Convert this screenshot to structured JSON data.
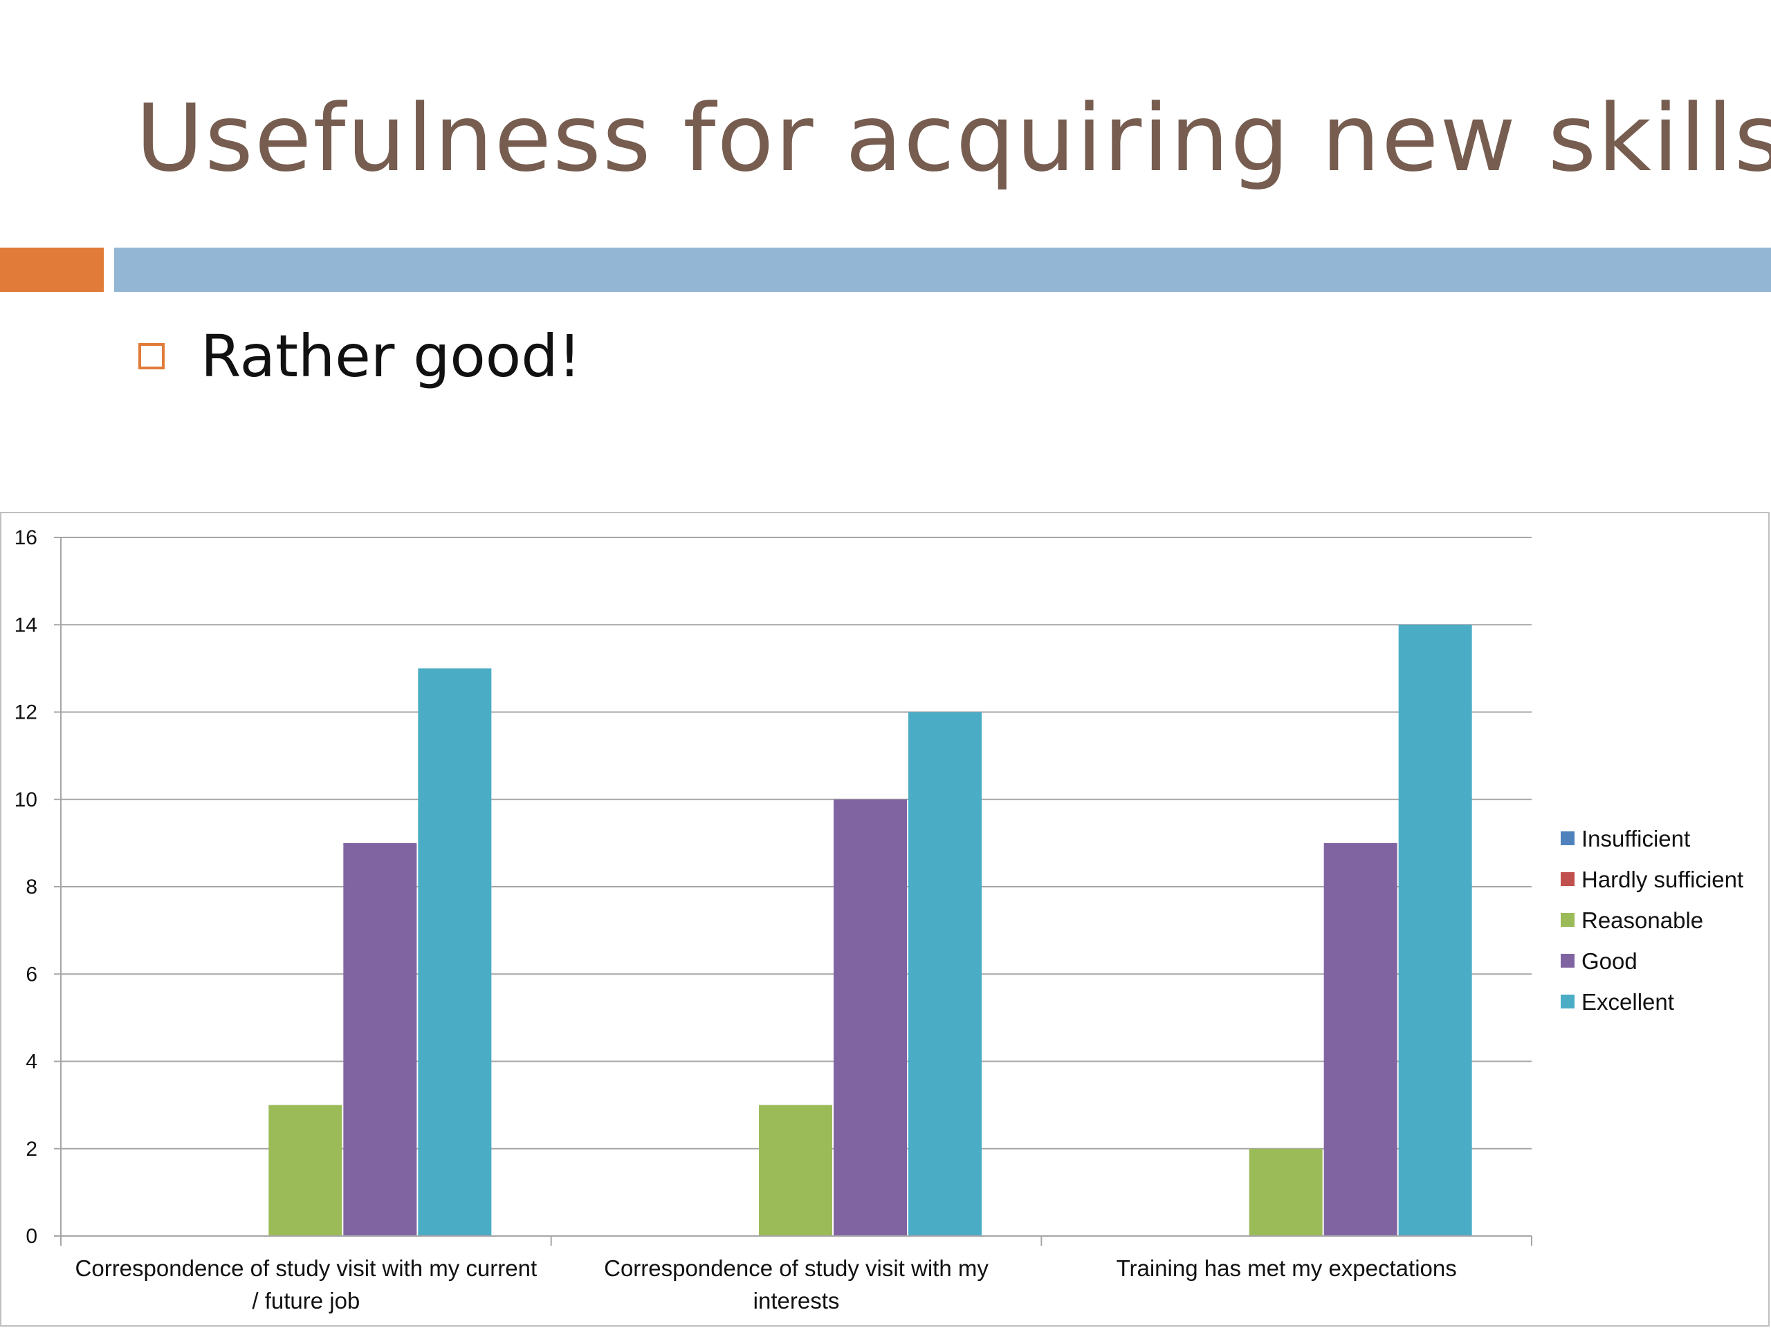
{
  "slide": {
    "title": "Usefulness for acquiring new skills",
    "bullet": "Rather good!",
    "accent_orange": "#e07b39",
    "accent_blue": "#93b6d4",
    "bullet_color": "#e07b39"
  },
  "chart_data": {
    "type": "bar",
    "categories": [
      [
        "Correspondence of study visit with my current",
        "/ future job"
      ],
      [
        "Correspondence of study visit with my",
        "interests"
      ],
      [
        "Training has met my expectations"
      ]
    ],
    "series": [
      {
        "name": "Insufficient",
        "color": "#4f81bd",
        "values": [
          0,
          0,
          0
        ]
      },
      {
        "name": "Hardly sufficient",
        "color": "#c0504d",
        "values": [
          0,
          0,
          0
        ]
      },
      {
        "name": "Reasonable",
        "color": "#9bbb59",
        "values": [
          3,
          3,
          2
        ]
      },
      {
        "name": "Good",
        "color": "#8064a2",
        "values": [
          9,
          10,
          9
        ]
      },
      {
        "name": "Excellent",
        "color": "#4bacc6",
        "values": [
          13,
          12,
          14
        ]
      }
    ],
    "ylim": [
      0,
      16
    ],
    "yticks": [
      0,
      2,
      4,
      6,
      8,
      10,
      12,
      14,
      16
    ],
    "grid": true,
    "legend_position": "right"
  }
}
